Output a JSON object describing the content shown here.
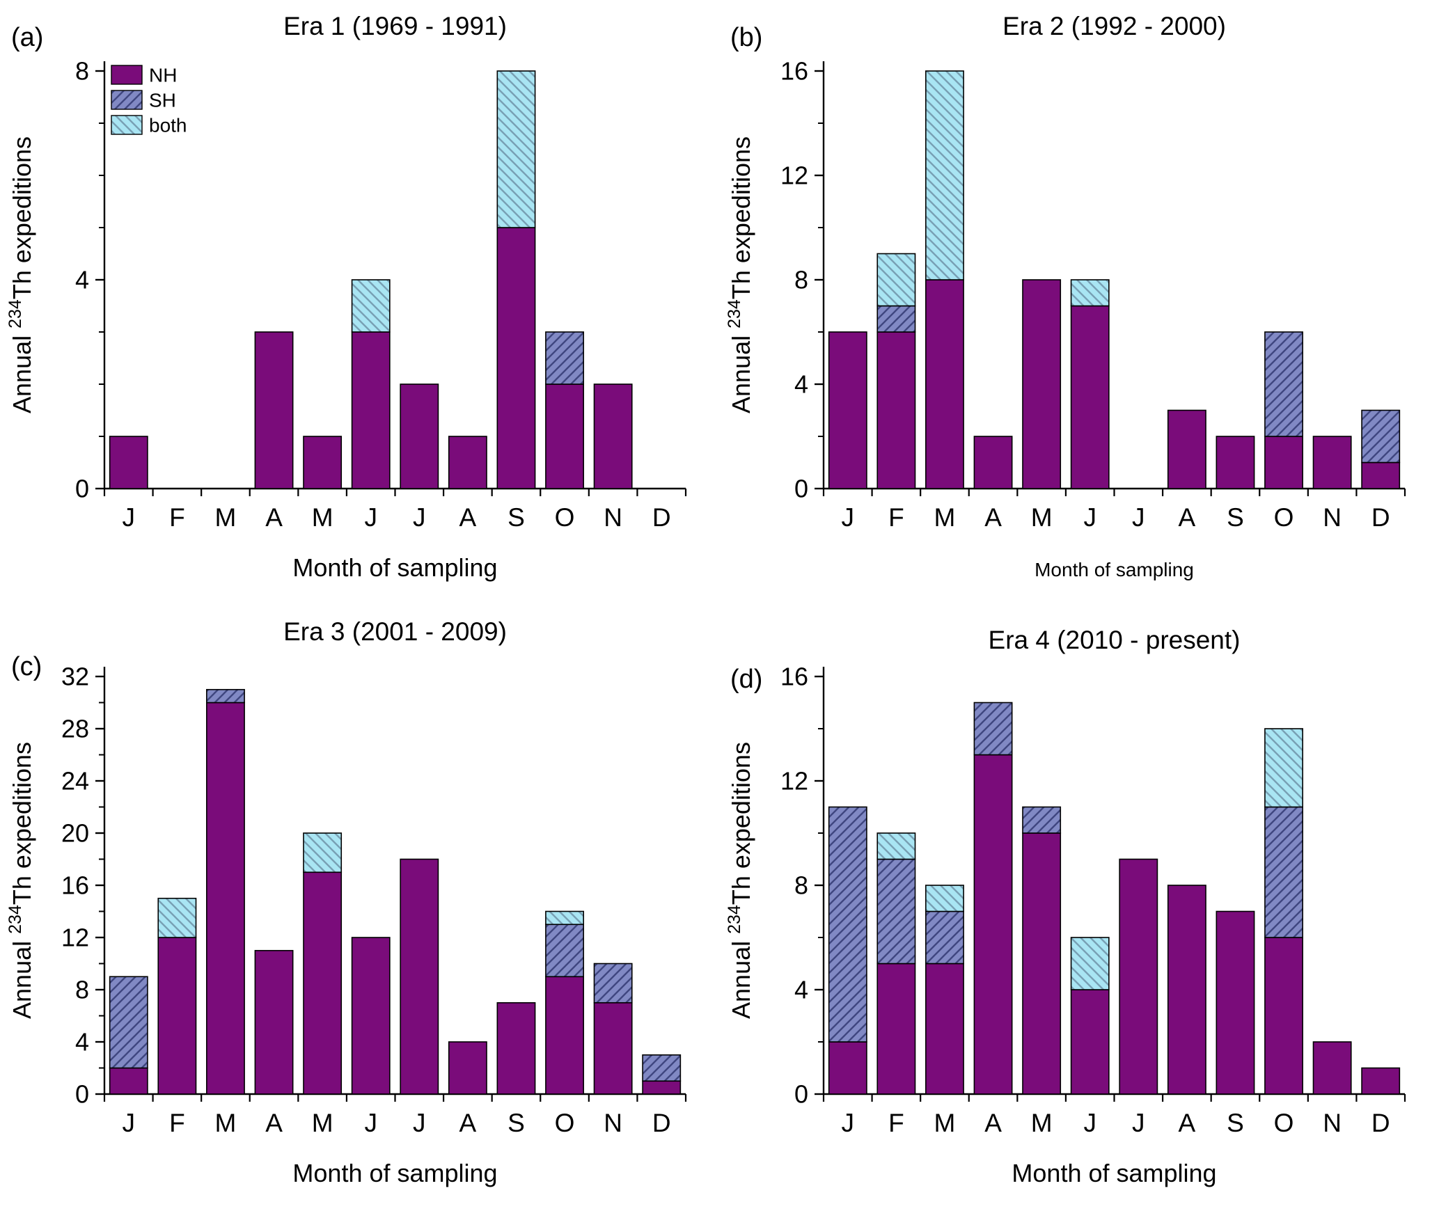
{
  "figure": {
    "background": "#ffffff",
    "xlabel": "Month of sampling",
    "ylabel_parts": {
      "prefix": "Annual ",
      "sup": "234",
      "suffix": "Th expeditions"
    },
    "legend": {
      "position": "top-left-panel-a",
      "items": [
        {
          "key": "NH",
          "label": "NH"
        },
        {
          "key": "SH",
          "label": "SH"
        },
        {
          "key": "both",
          "label": "both"
        }
      ]
    },
    "colors": {
      "NH": {
        "fill": "#7a0c7a"
      },
      "SH": {
        "fill": "#8189c4",
        "hatch": "/",
        "hatch_color": "#3f4680"
      },
      "both": {
        "fill": "#a9e5f3",
        "hatch": "\\",
        "hatch_color": "#78a0b4"
      },
      "axis": "#000000",
      "bar_edge": "#000000"
    }
  },
  "chart_data": [
    {
      "type": "bar",
      "stacked": true,
      "panel_label": "(a)",
      "title": "Era 1 (1969 - 1991)",
      "xlabel": "Month of sampling",
      "ylabel": "Annual 234Th expeditions",
      "categories": [
        "J",
        "F",
        "M",
        "A",
        "M",
        "J",
        "J",
        "A",
        "S",
        "O",
        "N",
        "D"
      ],
      "ylim": [
        0,
        8
      ],
      "yticks": [
        0,
        4,
        8
      ],
      "yminor_step": 1,
      "show_legend": true,
      "grid": false,
      "series": [
        {
          "name": "NH",
          "values": [
            1,
            0,
            0,
            3,
            1,
            3,
            2,
            1,
            5,
            2,
            2,
            0
          ]
        },
        {
          "name": "SH",
          "values": [
            0,
            0,
            0,
            0,
            0,
            0,
            0,
            0,
            0,
            1,
            0,
            0
          ]
        },
        {
          "name": "both",
          "values": [
            0,
            0,
            0,
            0,
            0,
            1,
            0,
            0,
            3,
            0,
            0,
            0
          ]
        }
      ]
    },
    {
      "type": "bar",
      "stacked": true,
      "panel_label": "(b)",
      "title": "Era 2 (1992 - 2000)",
      "xlabel": "Month of sampling",
      "xlabel_size": 28,
      "ylabel": "Annual 234Th expeditions",
      "categories": [
        "J",
        "F",
        "M",
        "A",
        "M",
        "J",
        "J",
        "A",
        "S",
        "O",
        "N",
        "D"
      ],
      "ylim": [
        0,
        16
      ],
      "yticks": [
        0,
        4,
        8,
        12,
        16
      ],
      "yminor_step": 2,
      "show_legend": false,
      "grid": false,
      "series": [
        {
          "name": "NH",
          "values": [
            6,
            6,
            8,
            2,
            8,
            7,
            0,
            3,
            2,
            2,
            2,
            1
          ]
        },
        {
          "name": "SH",
          "values": [
            0,
            1,
            0,
            0,
            0,
            0,
            0,
            0,
            0,
            4,
            0,
            2
          ]
        },
        {
          "name": "both",
          "values": [
            0,
            2,
            8,
            0,
            0,
            1,
            0,
            0,
            0,
            0,
            0,
            0
          ]
        }
      ]
    },
    {
      "type": "bar",
      "stacked": true,
      "panel_label": "(c)",
      "panel_label_y": 100,
      "title": "Era 3 (2001 - 2009)",
      "xlabel": "Month of sampling",
      "ylabel": "Annual 234Th expeditions",
      "categories": [
        "J",
        "F",
        "M",
        "A",
        "M",
        "J",
        "J",
        "A",
        "S",
        "O",
        "N",
        "D"
      ],
      "ylim": [
        0,
        32
      ],
      "yticks": [
        0,
        4,
        8,
        12,
        16,
        20,
        24,
        28,
        32
      ],
      "yminor_step": 2,
      "show_legend": false,
      "grid": false,
      "series": [
        {
          "name": "NH",
          "values": [
            2,
            12,
            30,
            11,
            17,
            12,
            18,
            4,
            7,
            9,
            7,
            1
          ]
        },
        {
          "name": "SH",
          "values": [
            7,
            0,
            1,
            0,
            0,
            0,
            0,
            0,
            0,
            4,
            3,
            2
          ]
        },
        {
          "name": "both",
          "values": [
            0,
            3,
            0,
            0,
            3,
            0,
            0,
            0,
            0,
            1,
            0,
            0
          ]
        }
      ]
    },
    {
      "type": "bar",
      "stacked": true,
      "panel_label": "(d)",
      "panel_label_y": 118,
      "title": "Era 4 (2010 - present)",
      "title_y": 62,
      "xlabel": "Month of sampling",
      "ylabel": "Annual 234Th expeditions",
      "categories": [
        "J",
        "F",
        "M",
        "A",
        "M",
        "J",
        "J",
        "A",
        "S",
        "O",
        "N",
        "D"
      ],
      "ylim": [
        0,
        16
      ],
      "yticks": [
        0,
        4,
        8,
        12,
        16
      ],
      "yminor_step": 2,
      "show_legend": false,
      "grid": false,
      "series": [
        {
          "name": "NH",
          "values": [
            2,
            5,
            5,
            13,
            10,
            4,
            9,
            8,
            7,
            6,
            2,
            1
          ]
        },
        {
          "name": "SH",
          "values": [
            9,
            4,
            2,
            2,
            1,
            0,
            0,
            0,
            0,
            5,
            0,
            0
          ]
        },
        {
          "name": "both",
          "values": [
            0,
            1,
            1,
            0,
            0,
            2,
            0,
            0,
            0,
            3,
            0,
            0
          ]
        }
      ]
    }
  ]
}
